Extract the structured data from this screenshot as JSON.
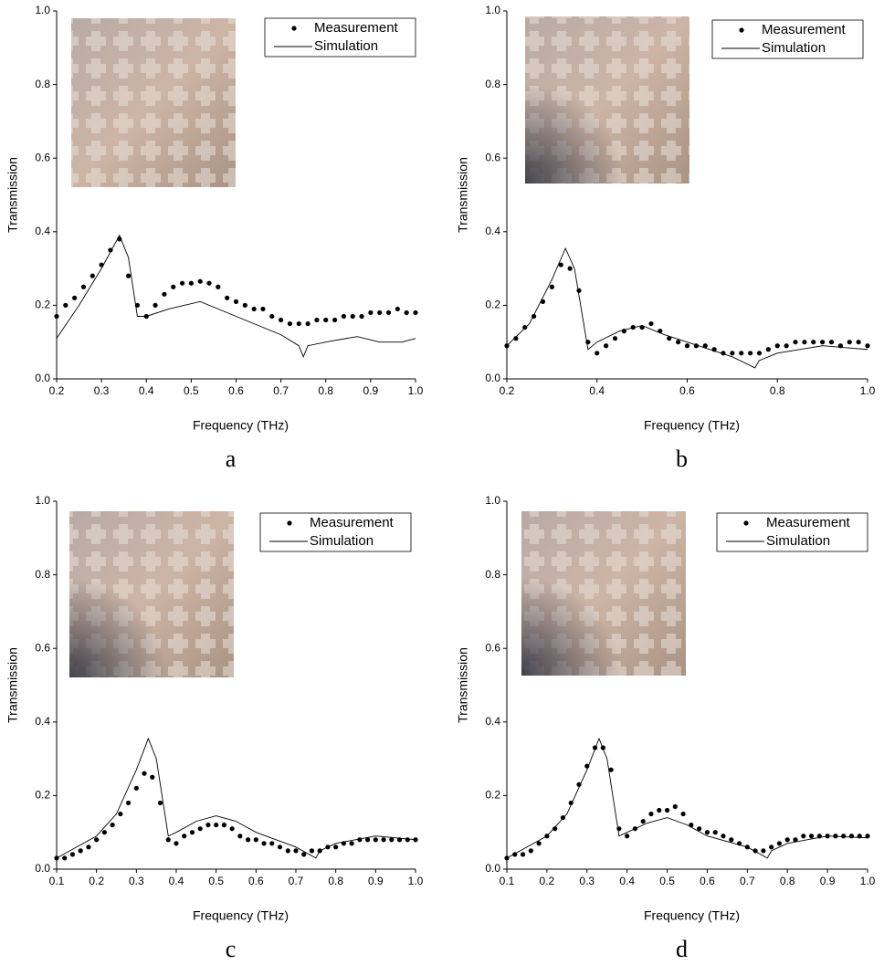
{
  "chart_data": [
    {
      "type": "line",
      "label": "a",
      "xlabel": "Frequency (THz)",
      "ylabel": "Transmission",
      "xlim": [
        0.2,
        1.0
      ],
      "xticks": [
        0.2,
        0.3,
        0.4,
        0.5,
        0.6,
        0.7,
        0.8,
        0.9,
        {
          "value": 1.0,
          "label": "1.0"
        }
      ],
      "ylim": [
        0,
        1.0
      ],
      "yticks": [
        {
          "value": 0,
          "label": "0.0"
        },
        0.2,
        0.4,
        0.6,
        0.8,
        {
          "value": 1.0,
          "label": "1.0"
        }
      ],
      "legend": "upper right",
      "series": [
        {
          "name": "Measurement",
          "color": "#000000",
          "mode": "markers",
          "x": [
            0.2,
            0.22,
            0.24,
            0.26,
            0.28,
            0.3,
            0.32,
            0.34,
            0.36,
            0.38,
            0.4,
            0.42,
            0.44,
            0.46,
            0.48,
            0.5,
            0.52,
            0.54,
            0.56,
            0.58,
            0.6,
            0.62,
            0.64,
            0.66,
            0.68,
            0.7,
            0.72,
            0.74,
            0.76,
            0.78,
            0.8,
            0.82,
            0.84,
            0.86,
            0.88,
            0.9,
            0.92,
            0.94,
            0.96,
            0.98,
            1.0
          ],
          "values": [
            0.17,
            0.2,
            0.22,
            0.25,
            0.28,
            0.31,
            0.35,
            0.38,
            0.28,
            0.2,
            0.17,
            0.2,
            0.23,
            0.25,
            0.26,
            0.26,
            0.265,
            0.26,
            0.25,
            0.22,
            0.21,
            0.2,
            0.19,
            0.19,
            0.17,
            0.16,
            0.15,
            0.15,
            0.15,
            0.16,
            0.16,
            0.16,
            0.17,
            0.17,
            0.17,
            0.18,
            0.18,
            0.18,
            0.19,
            0.18,
            0.18
          ]
        },
        {
          "name": "Simulation",
          "color": "#000000",
          "mode": "line",
          "x": [
            0.2,
            0.25,
            0.3,
            0.34,
            0.36,
            0.38,
            0.4,
            0.45,
            0.52,
            0.6,
            0.7,
            0.74,
            0.75,
            0.76,
            0.8,
            0.87,
            0.92,
            0.97,
            1.0
          ],
          "values": [
            0.11,
            0.2,
            0.3,
            0.39,
            0.33,
            0.17,
            0.17,
            0.19,
            0.21,
            0.17,
            0.12,
            0.09,
            0.06,
            0.09,
            0.1,
            0.115,
            0.1,
            0.1,
            0.11
          ]
        }
      ]
    },
    {
      "type": "line",
      "label": "b",
      "xlabel": "Frequency (THz)",
      "ylabel": "Transmission",
      "xlim": [
        0.2,
        1.0
      ],
      "xticks": [
        0.2,
        0.4,
        0.6,
        0.8,
        {
          "value": 1.0,
          "label": "1.0"
        }
      ],
      "ylim": [
        0,
        1.0
      ],
      "yticks": [
        {
          "value": 0,
          "label": "0.0"
        },
        0.2,
        0.4,
        0.6,
        0.8,
        {
          "value": 1.0,
          "label": "1.0"
        }
      ],
      "legend": "upper right",
      "series": [
        {
          "name": "Measurement",
          "color": "#000000",
          "mode": "markers",
          "x": [
            0.2,
            0.22,
            0.24,
            0.26,
            0.28,
            0.3,
            0.32,
            0.34,
            0.36,
            0.38,
            0.4,
            0.42,
            0.44,
            0.46,
            0.48,
            0.5,
            0.52,
            0.54,
            0.56,
            0.58,
            0.6,
            0.62,
            0.64,
            0.66,
            0.68,
            0.7,
            0.72,
            0.74,
            0.76,
            0.78,
            0.8,
            0.82,
            0.84,
            0.86,
            0.88,
            0.9,
            0.92,
            0.94,
            0.96,
            0.98,
            1.0
          ],
          "values": [
            0.09,
            0.11,
            0.14,
            0.17,
            0.21,
            0.25,
            0.31,
            0.3,
            0.24,
            0.1,
            0.07,
            0.09,
            0.11,
            0.13,
            0.14,
            0.14,
            0.15,
            0.13,
            0.11,
            0.1,
            0.09,
            0.09,
            0.09,
            0.08,
            0.07,
            0.07,
            0.07,
            0.07,
            0.07,
            0.08,
            0.09,
            0.09,
            0.1,
            0.1,
            0.1,
            0.1,
            0.1,
            0.09,
            0.1,
            0.1,
            0.09
          ]
        },
        {
          "name": "Simulation",
          "color": "#000000",
          "mode": "line",
          "x": [
            0.2,
            0.25,
            0.3,
            0.33,
            0.35,
            0.38,
            0.4,
            0.45,
            0.5,
            0.55,
            0.6,
            0.7,
            0.75,
            0.76,
            0.8,
            0.9,
            1.0
          ],
          "values": [
            0.09,
            0.15,
            0.27,
            0.355,
            0.3,
            0.08,
            0.1,
            0.13,
            0.145,
            0.12,
            0.1,
            0.06,
            0.03,
            0.05,
            0.07,
            0.09,
            0.08
          ]
        }
      ]
    },
    {
      "type": "line",
      "label": "c",
      "xlabel": "Frequency (THz)",
      "ylabel": "Transmission",
      "xlim": [
        0.1,
        1.0
      ],
      "xticks": [
        0.1,
        0.2,
        0.3,
        0.4,
        0.5,
        0.6,
        0.7,
        0.8,
        0.9,
        {
          "value": 1.0,
          "label": "1.0"
        }
      ],
      "ylim": [
        0,
        1.0
      ],
      "yticks": [
        {
          "value": 0,
          "label": "0.0"
        },
        0.2,
        0.4,
        0.6,
        0.8,
        {
          "value": 1.0,
          "label": "1.0"
        }
      ],
      "legend": "upper right",
      "series": [
        {
          "name": "Measurement",
          "color": "#000000",
          "mode": "markers",
          "x": [
            0.1,
            0.12,
            0.14,
            0.16,
            0.18,
            0.2,
            0.22,
            0.24,
            0.26,
            0.28,
            0.3,
            0.32,
            0.34,
            0.36,
            0.38,
            0.4,
            0.42,
            0.44,
            0.46,
            0.48,
            0.5,
            0.52,
            0.54,
            0.56,
            0.58,
            0.6,
            0.62,
            0.64,
            0.66,
            0.68,
            0.7,
            0.72,
            0.74,
            0.76,
            0.78,
            0.8,
            0.82,
            0.84,
            0.86,
            0.88,
            0.9,
            0.92,
            0.94,
            0.96,
            0.98,
            1.0
          ],
          "values": [
            0.03,
            0.03,
            0.04,
            0.05,
            0.06,
            0.08,
            0.1,
            0.12,
            0.15,
            0.18,
            0.22,
            0.26,
            0.25,
            0.18,
            0.08,
            0.07,
            0.09,
            0.1,
            0.11,
            0.12,
            0.12,
            0.12,
            0.11,
            0.09,
            0.08,
            0.08,
            0.07,
            0.07,
            0.06,
            0.05,
            0.05,
            0.04,
            0.05,
            0.05,
            0.06,
            0.06,
            0.07,
            0.07,
            0.08,
            0.08,
            0.08,
            0.08,
            0.08,
            0.08,
            0.08,
            0.08
          ]
        },
        {
          "name": "Simulation",
          "color": "#000000",
          "mode": "line",
          "x": [
            0.1,
            0.2,
            0.25,
            0.3,
            0.33,
            0.35,
            0.38,
            0.4,
            0.45,
            0.5,
            0.55,
            0.6,
            0.7,
            0.75,
            0.76,
            0.8,
            0.9,
            1.0
          ],
          "values": [
            0.03,
            0.09,
            0.15,
            0.27,
            0.355,
            0.3,
            0.09,
            0.1,
            0.13,
            0.145,
            0.13,
            0.1,
            0.06,
            0.03,
            0.05,
            0.07,
            0.09,
            0.08
          ]
        }
      ]
    },
    {
      "type": "line",
      "label": "d",
      "xlabel": "Frequency (THz)",
      "ylabel": "Transmission",
      "xlim": [
        0.1,
        1.0
      ],
      "xticks": [
        0.1,
        0.2,
        0.3,
        0.4,
        0.5,
        0.6,
        0.7,
        0.8,
        0.9,
        {
          "value": 1.0,
          "label": "1.0"
        }
      ],
      "ylim": [
        0,
        1.0
      ],
      "yticks": [
        {
          "value": 0,
          "label": "0.0"
        },
        0.2,
        0.4,
        0.6,
        0.8,
        {
          "value": 1.0,
          "label": "1.0"
        }
      ],
      "legend": "upper right",
      "series": [
        {
          "name": "Measurement",
          "color": "#000000",
          "mode": "markers",
          "x": [
            0.1,
            0.12,
            0.14,
            0.16,
            0.18,
            0.2,
            0.22,
            0.24,
            0.26,
            0.28,
            0.3,
            0.32,
            0.34,
            0.36,
            0.38,
            0.4,
            0.42,
            0.44,
            0.46,
            0.48,
            0.5,
            0.52,
            0.54,
            0.56,
            0.58,
            0.6,
            0.62,
            0.64,
            0.66,
            0.68,
            0.7,
            0.72,
            0.74,
            0.76,
            0.78,
            0.8,
            0.82,
            0.84,
            0.86,
            0.88,
            0.9,
            0.92,
            0.94,
            0.96,
            0.98,
            1.0
          ],
          "values": [
            0.03,
            0.04,
            0.04,
            0.05,
            0.07,
            0.09,
            0.11,
            0.14,
            0.18,
            0.23,
            0.28,
            0.33,
            0.33,
            0.27,
            0.11,
            0.09,
            0.11,
            0.13,
            0.15,
            0.16,
            0.16,
            0.17,
            0.15,
            0.12,
            0.11,
            0.1,
            0.1,
            0.09,
            0.08,
            0.07,
            0.06,
            0.05,
            0.05,
            0.06,
            0.07,
            0.08,
            0.08,
            0.09,
            0.09,
            0.09,
            0.09,
            0.09,
            0.09,
            0.09,
            0.09,
            0.09
          ]
        },
        {
          "name": "Simulation",
          "color": "#000000",
          "mode": "line",
          "x": [
            0.1,
            0.2,
            0.25,
            0.3,
            0.33,
            0.35,
            0.38,
            0.4,
            0.45,
            0.5,
            0.55,
            0.6,
            0.7,
            0.75,
            0.76,
            0.8,
            0.9,
            1.0
          ],
          "values": [
            0.03,
            0.09,
            0.15,
            0.27,
            0.355,
            0.3,
            0.09,
            0.1,
            0.125,
            0.14,
            0.12,
            0.09,
            0.06,
            0.03,
            0.05,
            0.07,
            0.09,
            0.085
          ]
        }
      ]
    }
  ]
}
